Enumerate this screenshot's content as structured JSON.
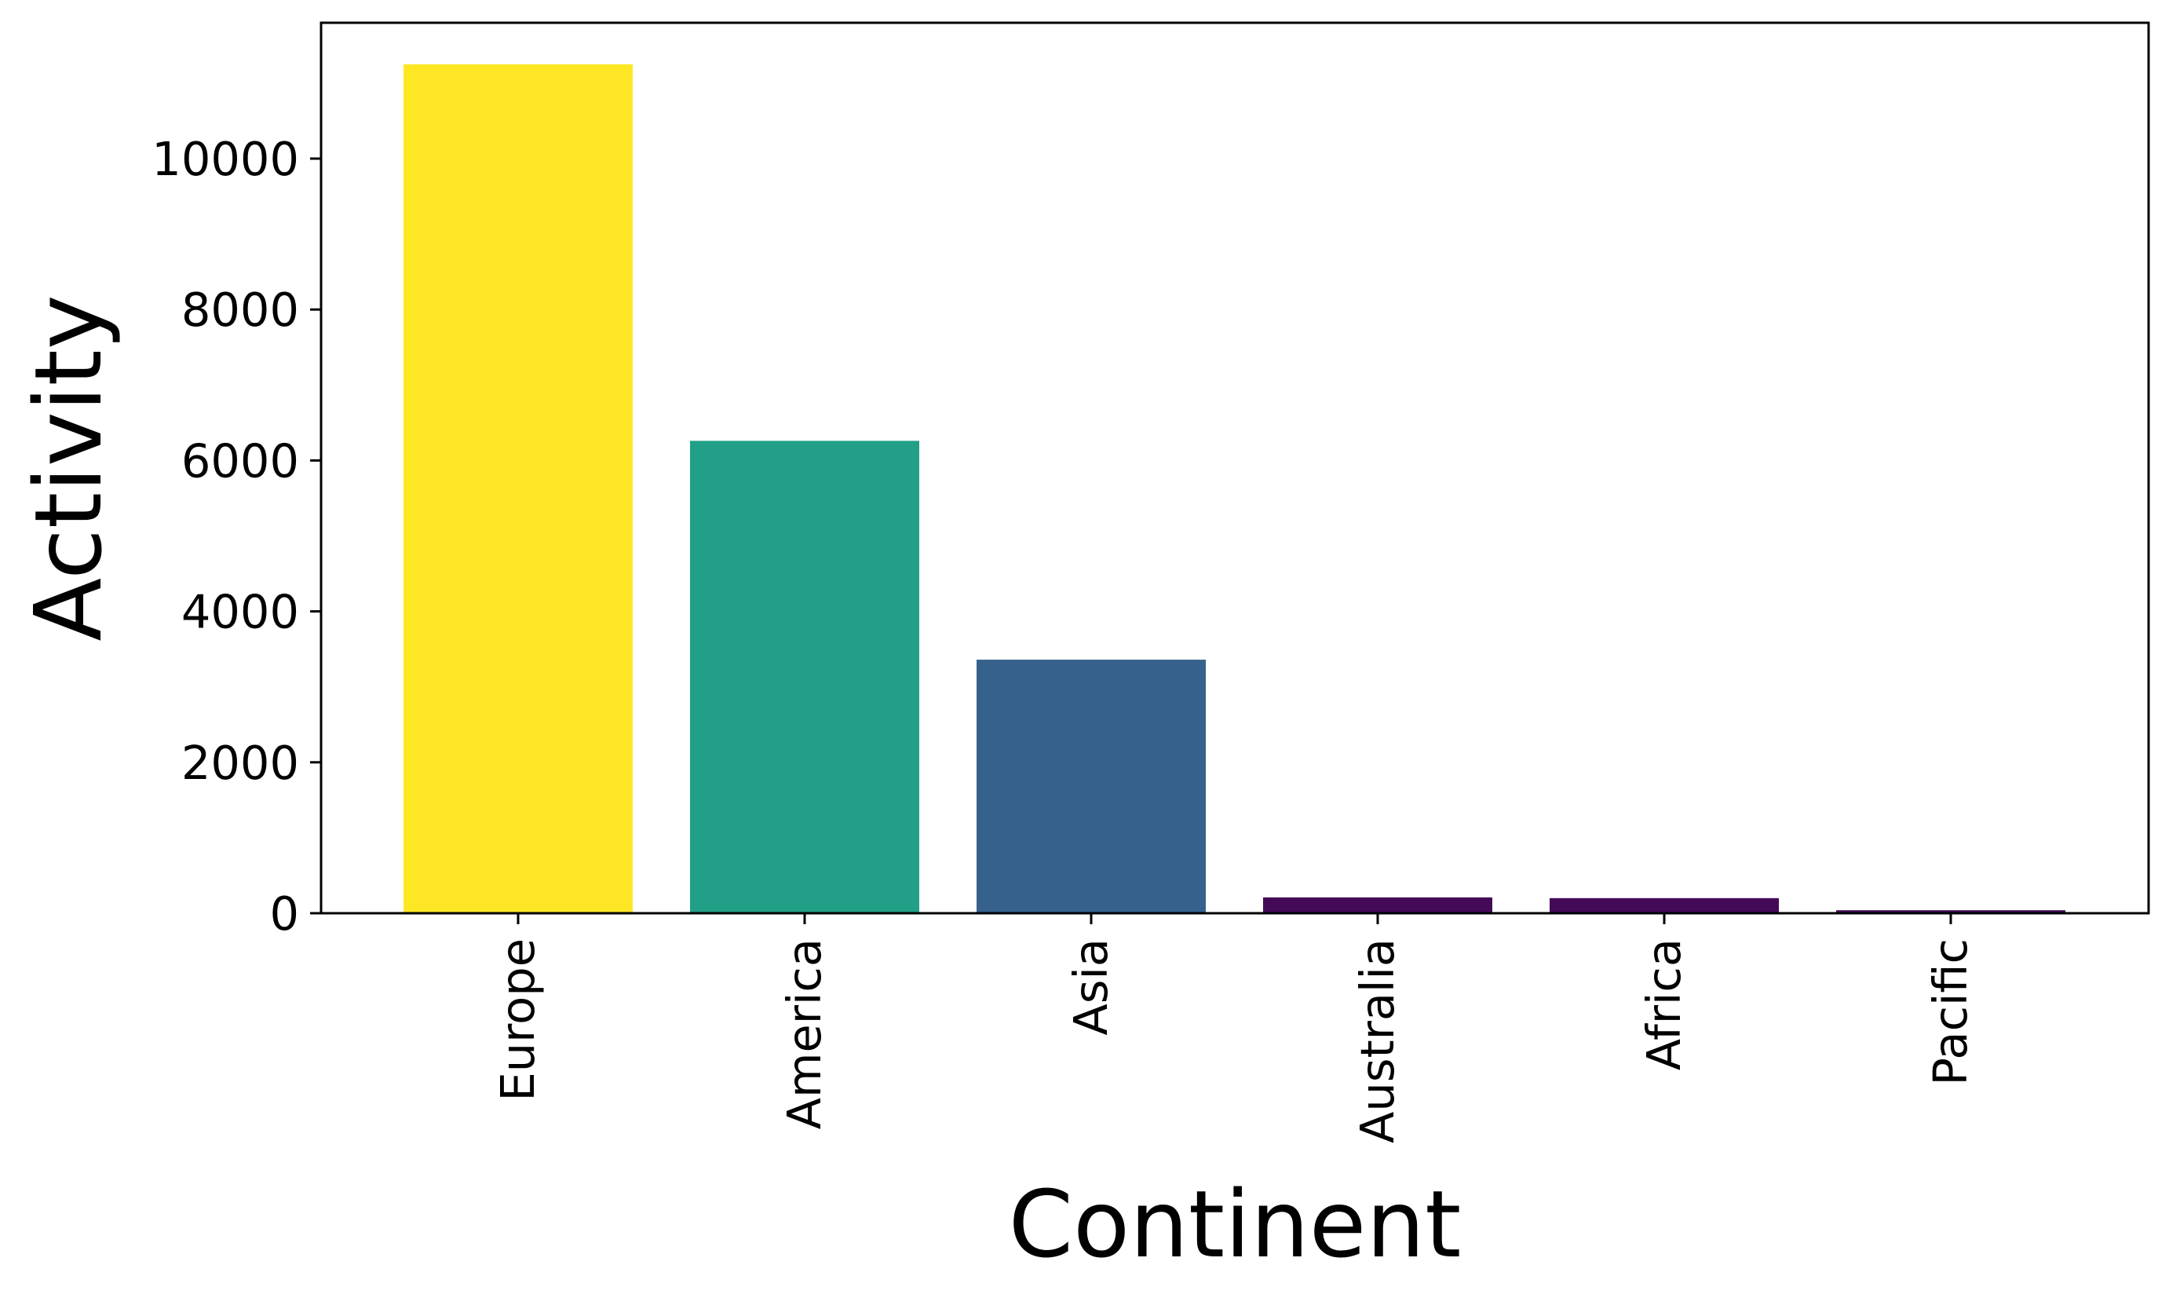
{
  "chart_data": {
    "type": "bar",
    "title": "",
    "xlabel": "Continent",
    "ylabel": "Activity",
    "categories": [
      "Europe",
      "America",
      "Asia",
      "Australia",
      "Africa",
      "Pacific"
    ],
    "values": [
      11250,
      6260,
      3360,
      210,
      200,
      40
    ],
    "colors": [
      "#fde725",
      "#21a087",
      "#36618c",
      "#440a57",
      "#440a57",
      "#440a57"
    ],
    "ylim": [
      0,
      11800
    ],
    "yticks": [
      0,
      2000,
      4000,
      6000,
      8000,
      10000
    ],
    "ytick_labels": [
      "0",
      "2000",
      "4000",
      "6000",
      "8000",
      "10000"
    ],
    "grid": false,
    "legend": "none"
  }
}
